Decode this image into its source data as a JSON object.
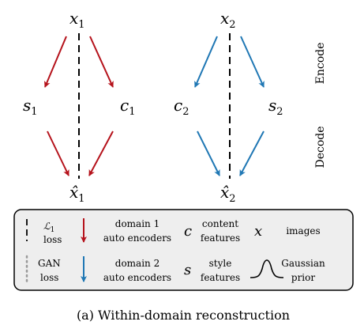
{
  "diagram": {
    "nodes": {
      "x1": {
        "base": "x",
        "sub": "1"
      },
      "s1": {
        "base": "s",
        "sub": "1"
      },
      "c1": {
        "base": "c",
        "sub": "1"
      },
      "xhat1": {
        "base": "x̂",
        "sub": "1"
      },
      "x2": {
        "base": "x",
        "sub": "2"
      },
      "c2": {
        "base": "c",
        "sub": "2"
      },
      "s2": {
        "base": "s",
        "sub": "2"
      },
      "xhat2": {
        "base": "x̂",
        "sub": "2"
      }
    },
    "side_labels": {
      "encode": "Encode",
      "decode": "Decode"
    }
  },
  "legend": {
    "l1": {
      "symbol": "ℒ",
      "sub": "1",
      "label": "loss"
    },
    "gan": {
      "line1": "GAN",
      "line2": "loss"
    },
    "domain1": {
      "line1": "domain 1",
      "line2": "auto encoders"
    },
    "domain2": {
      "line1": "domain 2",
      "line2": "auto encoders"
    },
    "content": {
      "symbol": "c",
      "line1": "content",
      "line2": "features"
    },
    "style": {
      "symbol": "s",
      "line1": "style",
      "line2": "features"
    },
    "images": {
      "symbol": "x",
      "label": "images"
    },
    "gaussian": {
      "line1": "Gaussian",
      "line2": "prior"
    }
  },
  "colors": {
    "domain1": "#b5121b",
    "domain2": "#1f77b4"
  },
  "caption": "(a) Within-domain reconstruction"
}
